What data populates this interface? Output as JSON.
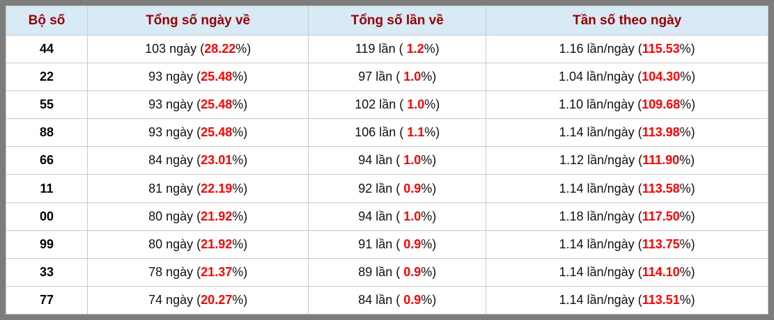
{
  "colors": {
    "frame": "#7d7d7d",
    "header_bg": "#d7eaf5",
    "header_text": "#990000",
    "accent_red": "#ff0000",
    "grid_border": "#c9c9c9"
  },
  "table": {
    "headers": [
      "Bộ số",
      "Tổng số ngày về",
      "Tổng số lần về",
      "Tần số theo ngày"
    ],
    "rows": [
      {
        "pair": "44",
        "days_pre": "103 ngày (",
        "days_red": "28.22",
        "days_post": "%)",
        "times_pre": "119 lần ( ",
        "times_red": "1.2",
        "times_post": "%)",
        "freq_pre": "1.16 lần/ngày (",
        "freq_red": "115.53",
        "freq_post": "%)"
      },
      {
        "pair": "22",
        "days_pre": "93 ngày (",
        "days_red": "25.48",
        "days_post": "%)",
        "times_pre": "97 lần ( ",
        "times_red": "1.0",
        "times_post": "%)",
        "freq_pre": "1.04 lần/ngày (",
        "freq_red": "104.30",
        "freq_post": "%)"
      },
      {
        "pair": "55",
        "days_pre": "93 ngày (",
        "days_red": "25.48",
        "days_post": "%)",
        "times_pre": "102 lần ( ",
        "times_red": "1.0",
        "times_post": "%)",
        "freq_pre": "1.10 lần/ngày (",
        "freq_red": "109.68",
        "freq_post": "%)"
      },
      {
        "pair": "88",
        "days_pre": "93 ngày (",
        "days_red": "25.48",
        "days_post": "%)",
        "times_pre": "106 lần ( ",
        "times_red": "1.1",
        "times_post": "%)",
        "freq_pre": "1.14 lần/ngày (",
        "freq_red": "113.98",
        "freq_post": "%)"
      },
      {
        "pair": "66",
        "days_pre": "84 ngày (",
        "days_red": "23.01",
        "days_post": "%)",
        "times_pre": "94 lần ( ",
        "times_red": "1.0",
        "times_post": "%)",
        "freq_pre": "1.12 lần/ngày (",
        "freq_red": "111.90",
        "freq_post": "%)"
      },
      {
        "pair": "11",
        "days_pre": "81 ngày (",
        "days_red": "22.19",
        "days_post": "%)",
        "times_pre": "92 lần ( ",
        "times_red": "0.9",
        "times_post": "%)",
        "freq_pre": "1.14 lần/ngày (",
        "freq_red": "113.58",
        "freq_post": "%)"
      },
      {
        "pair": "00",
        "days_pre": "80 ngày (",
        "days_red": "21.92",
        "days_post": "%)",
        "times_pre": "94 lần ( ",
        "times_red": "1.0",
        "times_post": "%)",
        "freq_pre": "1.18 lần/ngày (",
        "freq_red": "117.50",
        "freq_post": "%)"
      },
      {
        "pair": "99",
        "days_pre": "80 ngày (",
        "days_red": "21.92",
        "days_post": "%)",
        "times_pre": "91 lần ( ",
        "times_red": "0.9",
        "times_post": "%)",
        "freq_pre": "1.14 lần/ngày (",
        "freq_red": "113.75",
        "freq_post": "%)"
      },
      {
        "pair": "33",
        "days_pre": "78 ngày (",
        "days_red": "21.37",
        "days_post": "%)",
        "times_pre": "89 lần ( ",
        "times_red": "0.9",
        "times_post": "%)",
        "freq_pre": "1.14 lần/ngày (",
        "freq_red": "114.10",
        "freq_post": "%)"
      },
      {
        "pair": "77",
        "days_pre": "74 ngày (",
        "days_red": "20.27",
        "days_post": "%)",
        "times_pre": "84 lần ( ",
        "times_red": "0.9",
        "times_post": "%)",
        "freq_pre": "1.14 lần/ngày (",
        "freq_red": "113.51",
        "freq_post": "%)"
      }
    ]
  }
}
